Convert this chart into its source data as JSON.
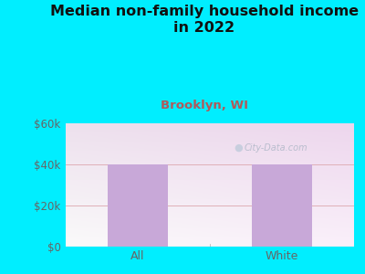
{
  "title": "Median non-family household income\nin 2022",
  "subtitle": "Brooklyn, WI",
  "categories": [
    "All",
    "White"
  ],
  "values": [
    40000,
    40000
  ],
  "bar_color": "#c8a8d8",
  "title_fontsize": 11.5,
  "subtitle_fontsize": 9.5,
  "subtitle_color": "#b05a5a",
  "title_color": "#111111",
  "tick_color": "#666666",
  "ylim": [
    0,
    60000
  ],
  "yticks": [
    0,
    20000,
    40000,
    60000
  ],
  "ytick_labels": [
    "$0",
    "$20k",
    "$40k",
    "$60k"
  ],
  "background_outer": "#00eeff",
  "watermark": "City-Data.com",
  "grid_color": "#e0b0b8",
  "bar_width": 0.42
}
